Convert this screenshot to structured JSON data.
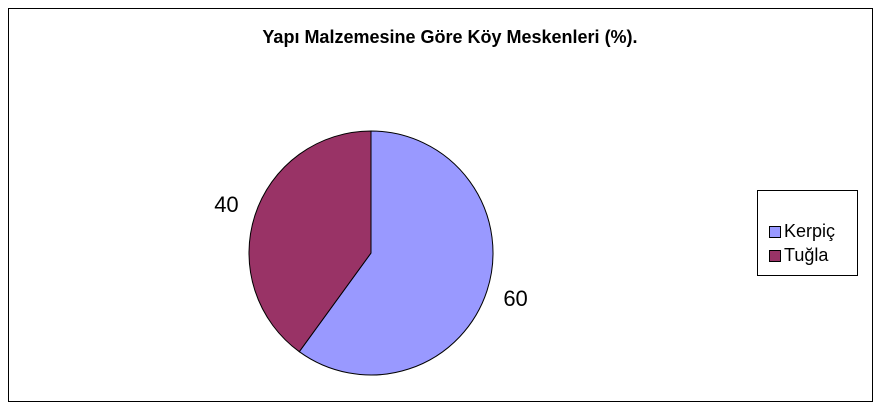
{
  "chart_data": {
    "type": "pie",
    "title": "Yapı Malzemesine Göre Köy Meskenleri (%).",
    "categories": [
      "Kerpiç",
      "Tuğla"
    ],
    "values": [
      60,
      40
    ],
    "colors": [
      "#9999ff",
      "#993366"
    ],
    "legend": "right"
  }
}
